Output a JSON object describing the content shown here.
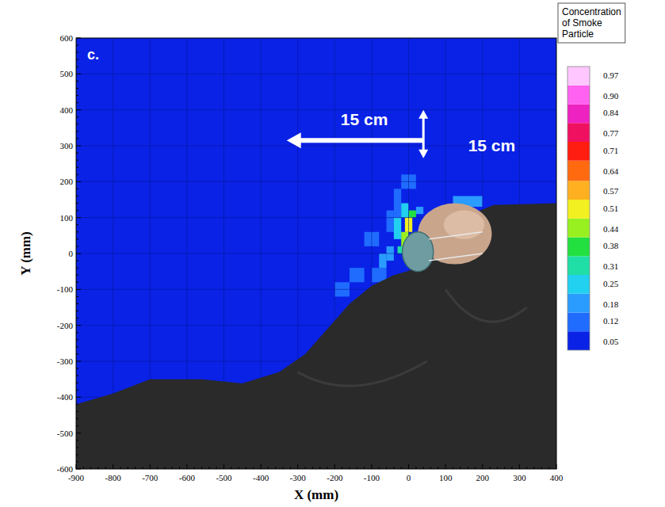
{
  "chart_data": {
    "type": "heatmap",
    "panel_label": "c.",
    "x_label": "X (mm)",
    "y_label": "Y (mm)",
    "xlim": [
      -900,
      400
    ],
    "xticks": [
      -900,
      -800,
      -700,
      -600,
      -500,
      -400,
      -300,
      -200,
      -100,
      0,
      100,
      200,
      300,
      400
    ],
    "ylim": [
      -600,
      600
    ],
    "yticks": [
      -600,
      -500,
      -400,
      -300,
      -200,
      -100,
      0,
      100,
      200,
      300,
      400,
      500,
      600
    ],
    "grid": true,
    "annotations": [
      "15 cm",
      "15 cm"
    ],
    "colorbar": {
      "title": "Concentration of Smoke Particle",
      "range": [
        0.02,
        1.0
      ],
      "ticks": [
        0.05,
        0.12,
        0.18,
        0.25,
        0.31,
        0.38,
        0.44,
        0.51,
        0.57,
        0.64,
        0.71,
        0.77,
        0.84,
        {
          "value": 0.9,
          "label": "0.90"
        },
        0.97
      ]
    },
    "cells": [
      {
        "x": [
          -900,
          400
        ],
        "y": [
          -600,
          600
        ],
        "value": 0.05
      },
      {
        "x": [
          -60,
          -40
        ],
        "y": [
          60,
          120
        ],
        "value": 0.12
      },
      {
        "x": [
          -40,
          -20
        ],
        "y": [
          100,
          180
        ],
        "value": 0.12
      },
      {
        "x": [
          -100,
          -60
        ],
        "y": [
          -80,
          -40
        ],
        "value": 0.12
      },
      {
        "x": [
          -160,
          -120
        ],
        "y": [
          -80,
          -40
        ],
        "value": 0.12
      },
      {
        "x": [
          -200,
          -160
        ],
        "y": [
          -120,
          -80
        ],
        "value": 0.12
      },
      {
        "x": [
          -120,
          -80
        ],
        "y": [
          20,
          60
        ],
        "value": 0.12
      },
      {
        "x": [
          -20,
          20
        ],
        "y": [
          180,
          220
        ],
        "value": 0.12
      },
      {
        "x": [
          -80,
          -60
        ],
        "y": [
          -40,
          0
        ],
        "value": 0.18
      },
      {
        "x": [
          -60,
          -40
        ],
        "y": [
          -20,
          20
        ],
        "value": 0.18
      },
      {
        "x": [
          20,
          40
        ],
        "y": [
          110,
          130
        ],
        "value": 0.18
      },
      {
        "x": [
          120,
          200
        ],
        "y": [
          130,
          160
        ],
        "value": 0.18
      },
      {
        "x": [
          -40,
          -20
        ],
        "y": [
          40,
          100
        ],
        "value": 0.25
      },
      {
        "x": [
          -20,
          0
        ],
        "y": [
          100,
          140
        ],
        "value": 0.25
      },
      {
        "x": [
          -30,
          -10
        ],
        "y": [
          0,
          20
        ],
        "value": 0.31
      },
      {
        "x": [
          0,
          20
        ],
        "y": [
          100,
          120
        ],
        "value": 0.38
      },
      {
        "x": [
          -20,
          0
        ],
        "y": [
          20,
          60
        ],
        "value": 0.44
      },
      {
        "x": [
          -10,
          10
        ],
        "y": [
          60,
          100
        ],
        "value": 0.51
      }
    ]
  }
}
